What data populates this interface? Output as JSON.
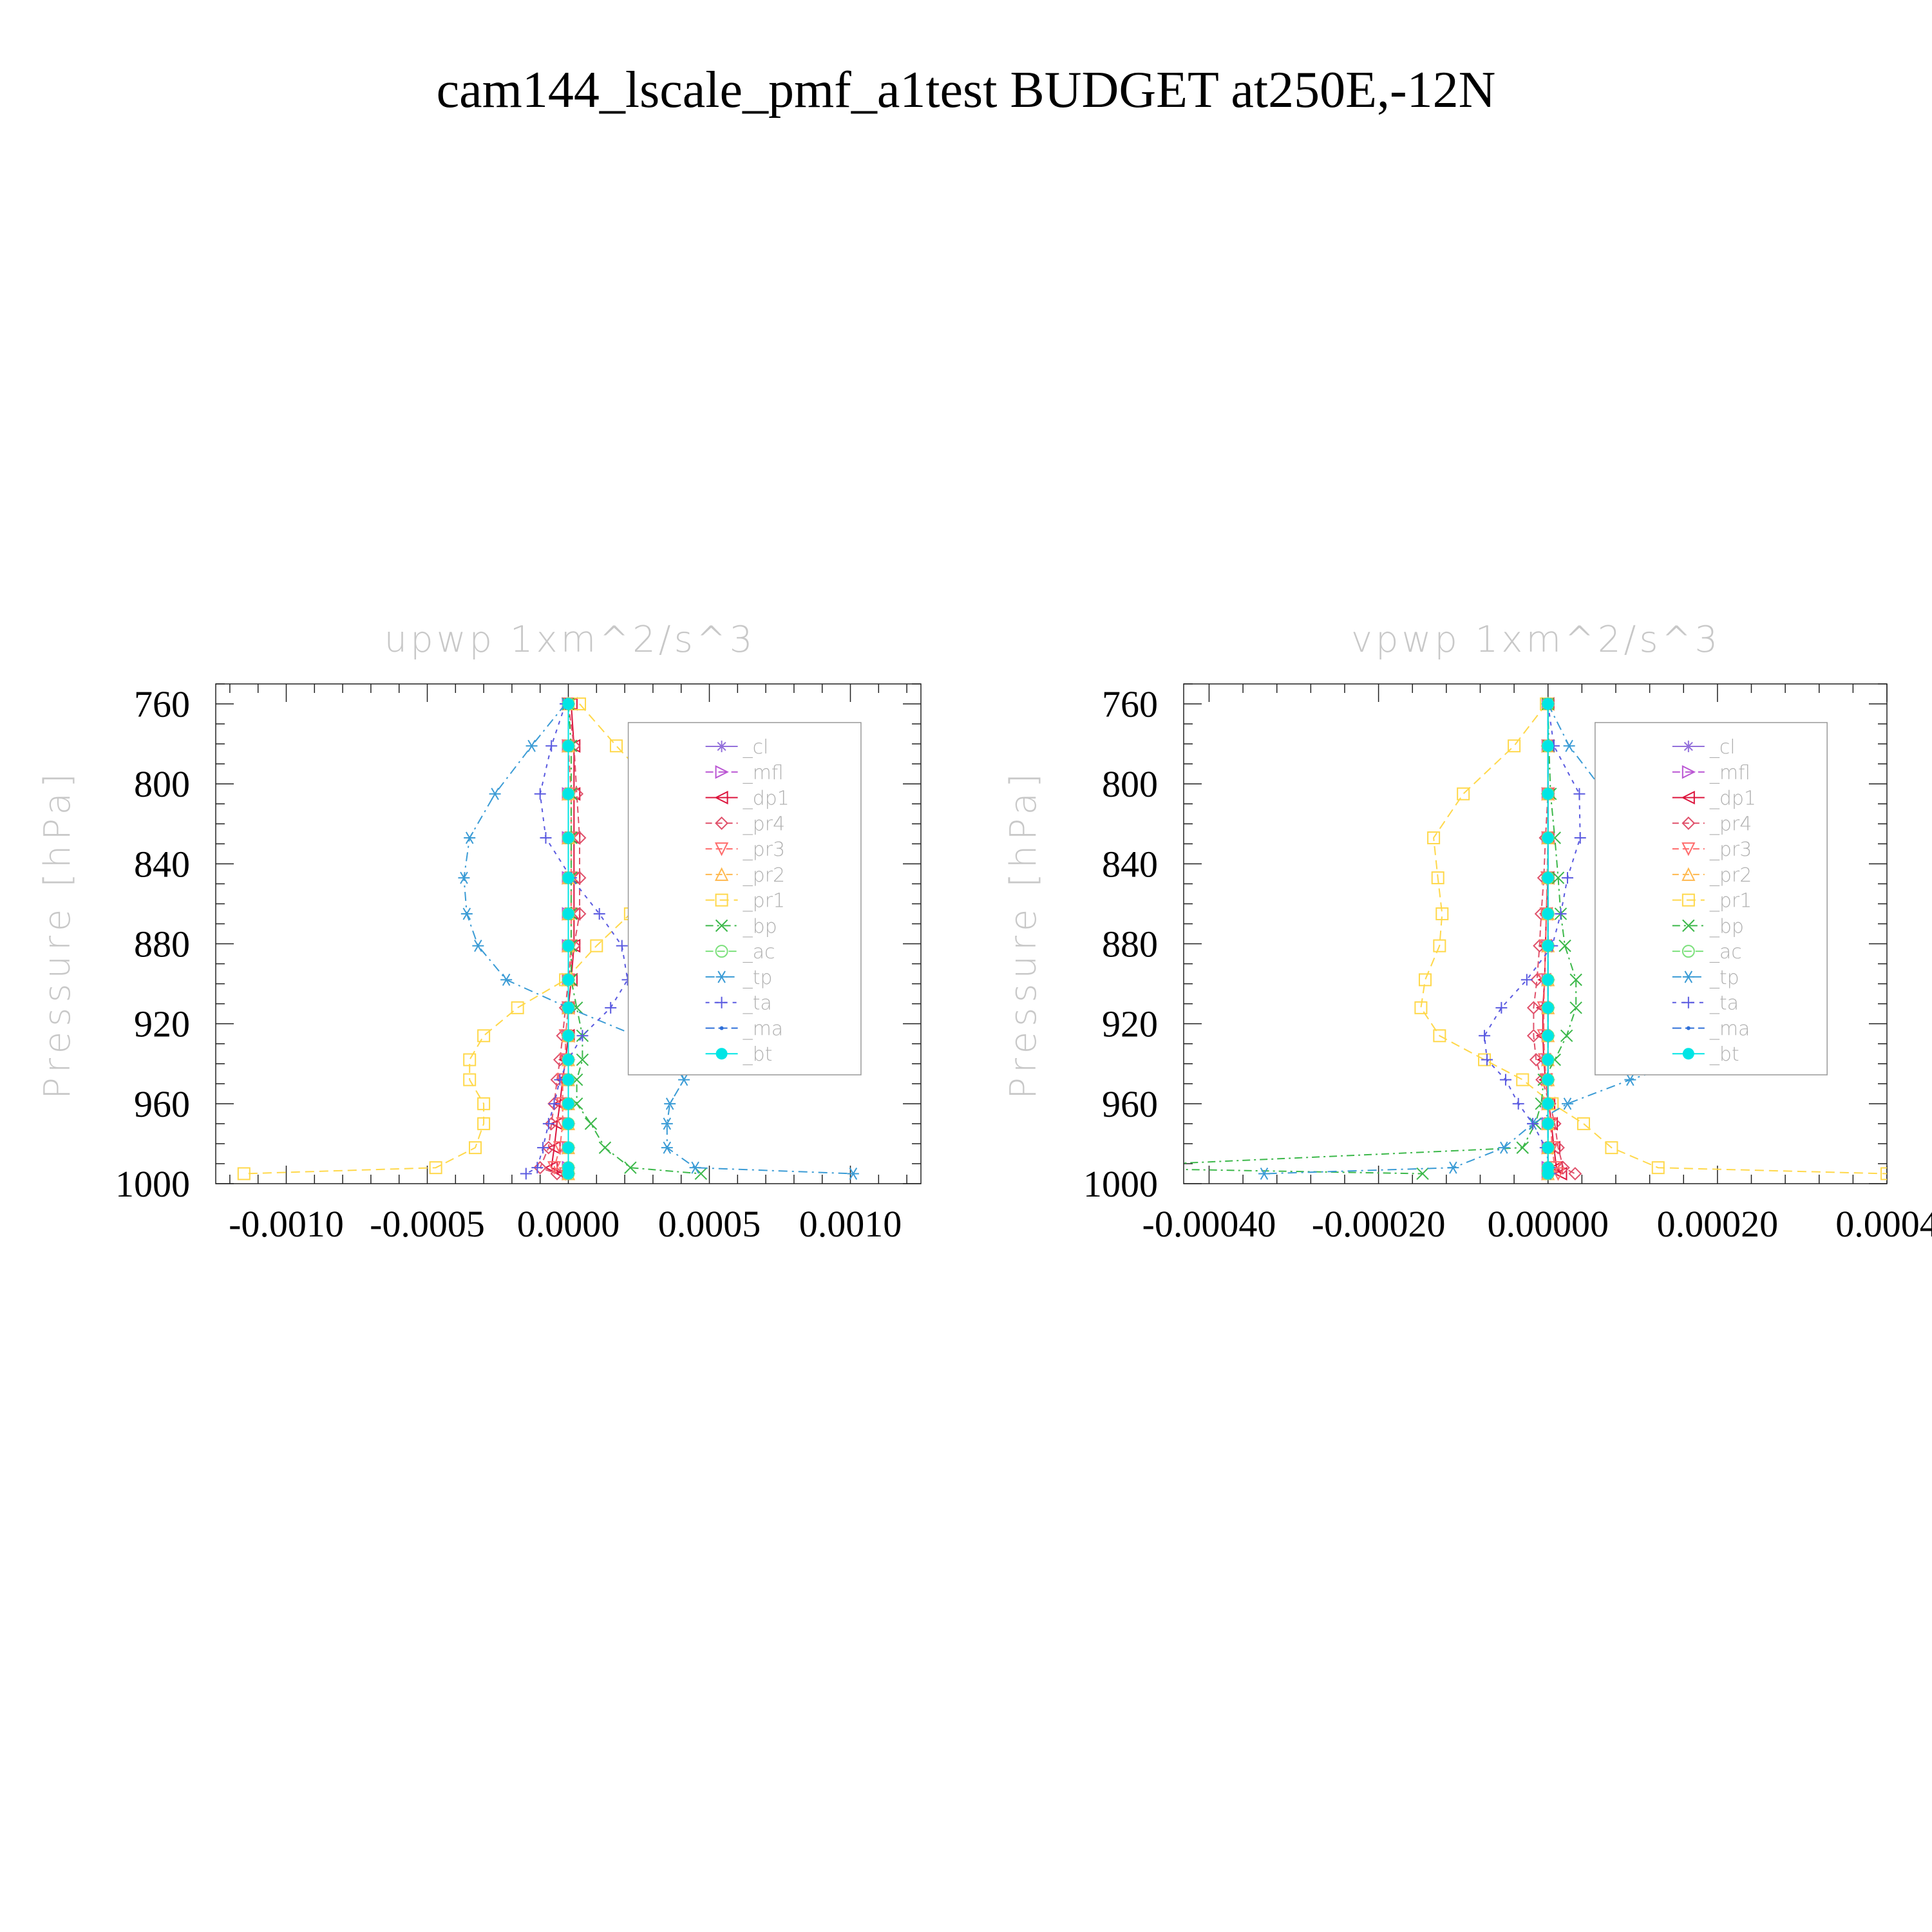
{
  "figure_title": "cam144_lscale_pmf_a1test  BUDGET at250E,-12N",
  "colors": {
    "_cl": "#9370db",
    "_mfl": "#ba55d3",
    "_dp1": "#dc143c",
    "_pr4": "#e0506a",
    "_pr3": "#ff6b6b",
    "_pr2": "#ffb84d",
    "_pr1": "#ffd84a",
    "_bp": "#3cb84a",
    "_ac": "#7ce07c",
    "_tp": "#3a9bd5",
    "_ta": "#5a5ae0",
    "_ma": "#2e6fd8",
    "_bt": "#00e5e5"
  },
  "chart_data": [
    {
      "type": "line",
      "title": "upwp   1xm^2/s^3",
      "ylabel": "Pressure [hPa]",
      "xlabel": "",
      "ylim": [
        1000,
        750
      ],
      "xlim": [
        -0.00125,
        0.00125
      ],
      "yticks": [
        760,
        800,
        840,
        880,
        920,
        960,
        1000
      ],
      "xticks": [
        -0.001,
        -0.0005,
        0.0,
        0.0005,
        0.001
      ],
      "xtick_labels": [
        "-0.0010",
        "-0.0005",
        "0.0000",
        "0.0005",
        "0.0010"
      ],
      "legend_position": "top-right",
      "y": [
        760,
        781,
        805,
        827,
        847,
        865,
        881,
        898,
        912,
        926,
        938,
        948,
        960,
        970,
        982,
        992,
        995
      ],
      "series": [
        {
          "name": "_cl",
          "marker": "star",
          "values": [
            0,
            0,
            0,
            0,
            0,
            0,
            0,
            0,
            0,
            0,
            0,
            0,
            0,
            0,
            0,
            0,
            0
          ]
        },
        {
          "name": "_mfl",
          "marker": "tri-right",
          "values": [
            0,
            0,
            0,
            0,
            0,
            0,
            0,
            0,
            0,
            0,
            0,
            0,
            0,
            0,
            0,
            0,
            0
          ]
        },
        {
          "name": "_dp1",
          "marker": "tri-left",
          "values": [
            1e-05,
            2e-05,
            2e-05,
            2e-05,
            2e-05,
            2e-05,
            2e-05,
            1e-05,
            0,
            0,
            -1e-05,
            -2e-05,
            -3e-05,
            -4e-05,
            -5e-05,
            -6e-05,
            -2e-05
          ]
        },
        {
          "name": "_pr4",
          "marker": "diamond",
          "values": [
            0,
            2e-05,
            3e-05,
            4e-05,
            4e-05,
            4e-05,
            2e-05,
            0,
            -1e-05,
            -2e-05,
            -3e-05,
            -4e-05,
            -5e-05,
            -6e-05,
            -7e-05,
            -0.0001,
            -4e-05
          ]
        },
        {
          "name": "_pr3",
          "marker": "tri-down",
          "values": [
            0,
            0,
            1e-05,
            1e-05,
            1e-05,
            1e-05,
            1e-05,
            0,
            0,
            -1e-05,
            -1e-05,
            -2e-05,
            -2e-05,
            -2e-05,
            -3e-05,
            -5e-05,
            -1e-05
          ]
        },
        {
          "name": "_pr2",
          "marker": "tri-up",
          "values": [
            0,
            0,
            0,
            0,
            0,
            0,
            0,
            0,
            0,
            0,
            0,
            0,
            0,
            0,
            0,
            0,
            0
          ]
        },
        {
          "name": "_pr1",
          "marker": "square",
          "values": [
            4e-05,
            0.00017,
            0.00033,
            0.00038,
            0.00033,
            0.00022,
            0.0001,
            -1e-05,
            -0.00018,
            -0.0003,
            -0.00035,
            -0.00035,
            -0.0003,
            -0.0003,
            -0.00033,
            -0.00047,
            -0.00115
          ]
        },
        {
          "name": "_bp",
          "marker": "x",
          "values": [
            0,
            1e-05,
            1e-05,
            1e-05,
            1e-05,
            1e-05,
            1e-05,
            1e-05,
            3e-05,
            5e-05,
            5e-05,
            3e-05,
            3e-05,
            8e-05,
            0.00013,
            0.00022,
            0.00047
          ]
        },
        {
          "name": "_ac",
          "marker": "circle-open",
          "values": [
            0,
            0,
            0,
            0,
            0,
            0,
            0,
            0,
            0,
            0,
            0,
            0,
            0,
            0,
            0,
            0,
            0
          ]
        },
        {
          "name": "_tp",
          "marker": "asterisk",
          "values": [
            -1e-05,
            -0.00013,
            -0.00026,
            -0.00035,
            -0.00037,
            -0.00036,
            -0.00032,
            -0.00022,
            0,
            0.00024,
            0.00038,
            0.00041,
            0.00036,
            0.00035,
            0.00035,
            0.00045,
            0.00101
          ]
        },
        {
          "name": "_ta",
          "marker": "plus",
          "values": [
            -1e-05,
            -6e-05,
            -0.0001,
            -8e-05,
            1e-05,
            0.00011,
            0.00019,
            0.00021,
            0.00015,
            5e-05,
            0,
            -3e-05,
            -5e-05,
            -7e-05,
            -9e-05,
            -0.00011,
            -0.00015
          ]
        },
        {
          "name": "_ma",
          "marker": "dot",
          "values": [
            0,
            0,
            0,
            0,
            0,
            0,
            0,
            0,
            0,
            0,
            0,
            0,
            0,
            0,
            0,
            0,
            0
          ]
        },
        {
          "name": "_bt",
          "marker": "filled-circle",
          "values": [
            0,
            0,
            0,
            0,
            0,
            0,
            0,
            0,
            0,
            0,
            0,
            0,
            0,
            0,
            0,
            0,
            0
          ]
        }
      ]
    },
    {
      "type": "line",
      "title": "vpwp   1xm^2/s^3",
      "ylabel": "Pressure [hPa]",
      "xlabel": "",
      "ylim": [
        1000,
        750
      ],
      "xlim": [
        -0.00043,
        0.0004
      ],
      "yticks": [
        760,
        800,
        840,
        880,
        920,
        960,
        1000
      ],
      "xticks": [
        -0.0004,
        -0.0002,
        0.0,
        0.0002,
        0.0004
      ],
      "xtick_labels": [
        "-0.00040",
        "-0.00020",
        "0.00000",
        "0.00020",
        "0.0004"
      ],
      "legend_position": "top-right",
      "y": [
        760,
        781,
        805,
        827,
        847,
        865,
        881,
        898,
        912,
        926,
        938,
        948,
        960,
        970,
        982,
        992,
        995
      ],
      "series": [
        {
          "name": "_cl",
          "marker": "star",
          "values": [
            0,
            0,
            0,
            0,
            0,
            0,
            0,
            0,
            0,
            0,
            0,
            0,
            0,
            0,
            0,
            0,
            0
          ]
        },
        {
          "name": "_mfl",
          "marker": "tri-right",
          "values": [
            0,
            0,
            0,
            0,
            0,
            0,
            0,
            0,
            0,
            0,
            0,
            0,
            0,
            0,
            0,
            0,
            0
          ]
        },
        {
          "name": "_dp1",
          "marker": "tri-left",
          "values": [
            0,
            0,
            0,
            0,
            0,
            -2e-06,
            -3e-06,
            -4e-06,
            -6e-06,
            -6e-06,
            -5e-06,
            -3e-06,
            1e-06,
            4e-06,
            7e-06,
            1e-05,
            1.5e-05
          ]
        },
        {
          "name": "_pr4",
          "marker": "diamond",
          "values": [
            0,
            0,
            0,
            -3e-06,
            -5e-06,
            -8e-06,
            -1e-05,
            -1.3e-05,
            -1.7e-05,
            -1.7e-05,
            -1.4e-05,
            -7e-06,
            2e-06,
            8e-06,
            1.2e-05,
            1.8e-05,
            3.2e-05
          ]
        },
        {
          "name": "_pr3",
          "marker": "tri-down",
          "values": [
            0,
            0,
            0,
            0,
            -1e-06,
            -2e-06,
            -3e-06,
            -4e-06,
            -5e-06,
            -5e-06,
            -4e-06,
            -2e-06,
            1e-06,
            3e-06,
            5e-06,
            8e-06,
            1.2e-05
          ]
        },
        {
          "name": "_pr2",
          "marker": "tri-up",
          "values": [
            0,
            0,
            0,
            0,
            0,
            0,
            0,
            0,
            0,
            0,
            0,
            0,
            0,
            0,
            0,
            0,
            0
          ]
        },
        {
          "name": "_pr1",
          "marker": "square",
          "values": [
            -2e-06,
            -4e-05,
            -0.0001,
            -0.000135,
            -0.00013,
            -0.000125,
            -0.000128,
            -0.000145,
            -0.00015,
            -0.000128,
            -7.5e-05,
            -3e-05,
            5e-06,
            4.2e-05,
            7.5e-05,
            0.00013,
            0.0004
          ]
        },
        {
          "name": "_bp",
          "marker": "x",
          "values": [
            0,
            1e-06,
            3e-06,
            8e-06,
            1.2e-05,
            1.5e-05,
            2e-05,
            3.3e-05,
            3.3e-05,
            2.2e-05,
            8e-06,
            -5e-06,
            -8e-06,
            -1.5e-05,
            -3e-05,
            -0.00055,
            -0.000148
          ]
        },
        {
          "name": "_ac",
          "marker": "circle-open",
          "values": [
            0,
            0,
            0,
            0,
            0,
            0,
            0,
            0,
            0,
            0,
            0,
            0,
            0,
            0,
            0,
            0,
            0
          ]
        },
        {
          "name": "_tp",
          "marker": "asterisk",
          "values": [
            0,
            2.5e-05,
            6.8e-05,
            0.000102,
            0.000103,
            0.000102,
            0.000112,
            0.000152,
            0.000197,
            0.000212,
            0.000168,
            9.7e-05,
            2.3e-05,
            -1.8e-05,
            -5.2e-05,
            -0.000112,
            -0.000335
          ]
        },
        {
          "name": "_ta",
          "marker": "plus",
          "values": [
            0,
            7e-06,
            3.7e-05,
            3.8e-05,
            2.3e-05,
            1.5e-05,
            5e-06,
            -2.5e-05,
            -5.5e-05,
            -7.5e-05,
            -7.2e-05,
            -5e-05,
            -3.5e-05,
            -1.8e-05,
            -3e-06,
            2e-06,
            3e-06
          ]
        },
        {
          "name": "_ma",
          "marker": "dot",
          "values": [
            0,
            0,
            0,
            0,
            0,
            0,
            0,
            0,
            0,
            0,
            0,
            0,
            0,
            0,
            0,
            0,
            0
          ]
        },
        {
          "name": "_bt",
          "marker": "filled-circle",
          "values": [
            0,
            0,
            0,
            0,
            0,
            0,
            0,
            0,
            0,
            0,
            0,
            0,
            0,
            0,
            0,
            0,
            0
          ]
        }
      ]
    }
  ]
}
